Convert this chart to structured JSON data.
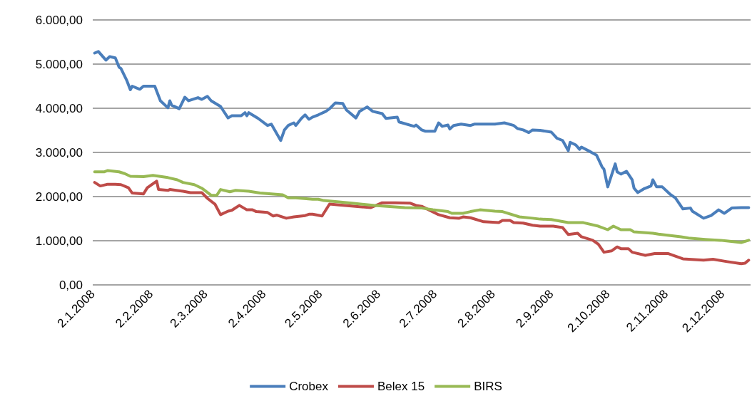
{
  "chart_data": {
    "type": "line",
    "xlim": [
      "2008-01-02",
      "2008-12-17"
    ],
    "xticks": [
      {
        "value": "2008-01-02",
        "label": "2.1.2008"
      },
      {
        "value": "2008-02-02",
        "label": "2.2.2008"
      },
      {
        "value": "2008-03-02",
        "label": "2.3.2008"
      },
      {
        "value": "2008-04-02",
        "label": "2.4.2008"
      },
      {
        "value": "2008-05-02",
        "label": "2.5.2008"
      },
      {
        "value": "2008-06-02",
        "label": "2.6.2008"
      },
      {
        "value": "2008-07-02",
        "label": "2.7.2008"
      },
      {
        "value": "2008-08-02",
        "label": "2.8.2008"
      },
      {
        "value": "2008-09-02",
        "label": "2.9.2008"
      },
      {
        "value": "2008-10-02",
        "label": "2.10.2008"
      },
      {
        "value": "2008-11-02",
        "label": "2.11.2008"
      },
      {
        "value": "2008-12-02",
        "label": "2.12.2008"
      }
    ],
    "ylim": [
      0,
      6000
    ],
    "yticks": [
      {
        "value": 0,
        "label": "0,00"
      },
      {
        "value": 1000,
        "label": "1.000,00"
      },
      {
        "value": 2000,
        "label": "2.000,00"
      },
      {
        "value": 3000,
        "label": "3.000,00"
      },
      {
        "value": 4000,
        "label": "4.000,00"
      },
      {
        "value": 5000,
        "label": "5.000,00"
      },
      {
        "value": 6000,
        "label": "6.000,00"
      }
    ],
    "grid": "y",
    "legend": "bottom",
    "marker": "none",
    "line_style": "solid",
    "series": [
      {
        "name": "Crobex",
        "color": "#4a7ebb",
        "x": [
          "2008-01-03",
          "2008-01-05",
          "2008-01-09",
          "2008-01-11",
          "2008-01-14",
          "2008-01-16",
          "2008-01-17",
          "2008-01-20",
          "2008-01-22",
          "2008-01-23",
          "2008-01-27",
          "2008-01-29",
          "2008-02-04",
          "2008-02-07",
          "2008-02-11",
          "2008-02-12",
          "2008-02-13",
          "2008-02-17",
          "2008-02-20",
          "2008-02-22",
          "2008-02-27",
          "2008-02-29",
          "2008-03-03",
          "2008-03-05",
          "2008-03-10",
          "2008-03-14",
          "2008-03-16",
          "2008-03-21",
          "2008-03-23",
          "2008-03-24",
          "2008-03-25",
          "2008-03-30",
          "2008-04-04",
          "2008-04-06",
          "2008-04-11",
          "2008-04-13",
          "2008-04-15",
          "2008-04-18",
          "2008-04-19",
          "2008-04-22",
          "2008-04-24",
          "2008-04-26",
          "2008-04-28",
          "2008-05-01",
          "2008-05-05",
          "2008-05-07",
          "2008-05-10",
          "2008-05-14",
          "2008-05-16",
          "2008-05-21",
          "2008-05-23",
          "2008-05-27",
          "2008-05-30",
          "2008-06-04",
          "2008-06-06",
          "2008-06-12",
          "2008-06-13",
          "2008-06-21",
          "2008-06-22",
          "2008-06-25",
          "2008-06-27",
          "2008-07-02",
          "2008-07-04",
          "2008-07-06",
          "2008-07-09",
          "2008-07-10",
          "2008-07-12",
          "2008-07-16",
          "2008-07-21",
          "2008-07-23",
          "2008-08-03",
          "2008-08-08",
          "2008-08-13",
          "2008-08-15",
          "2008-08-18",
          "2008-08-21",
          "2008-08-23",
          "2008-08-27",
          "2008-09-02",
          "2008-09-05",
          "2008-09-08",
          "2008-09-11",
          "2008-09-12",
          "2008-09-15",
          "2008-09-17",
          "2008-09-18",
          "2008-09-23",
          "2008-09-26",
          "2008-09-29",
          "2008-09-30",
          "2008-10-02",
          "2008-10-06",
          "2008-10-07",
          "2008-10-09",
          "2008-10-12",
          "2008-10-15",
          "2008-10-16",
          "2008-10-18",
          "2008-10-21",
          "2008-10-25",
          "2008-10-26",
          "2008-10-28",
          "2008-10-31",
          "2008-11-04",
          "2008-11-07",
          "2008-11-11",
          "2008-11-15",
          "2008-11-16",
          "2008-11-22",
          "2008-11-26",
          "2008-11-30",
          "2008-12-03",
          "2008-12-07",
          "2008-12-12",
          "2008-12-16"
        ],
        "values": [
          5250,
          5285,
          5090,
          5170,
          5140,
          4930,
          4900,
          4640,
          4420,
          4500,
          4430,
          4500,
          4500,
          4170,
          4010,
          4170,
          4070,
          3990,
          4250,
          4170,
          4240,
          4200,
          4270,
          4170,
          4040,
          3780,
          3830,
          3830,
          3900,
          3830,
          3900,
          3770,
          3610,
          3640,
          3270,
          3510,
          3610,
          3670,
          3610,
          3770,
          3850,
          3750,
          3800,
          3850,
          3930,
          3990,
          4120,
          4110,
          3960,
          3780,
          3930,
          4030,
          3930,
          3880,
          3770,
          3800,
          3690,
          3590,
          3620,
          3510,
          3480,
          3480,
          3670,
          3590,
          3620,
          3530,
          3610,
          3640,
          3610,
          3640,
          3640,
          3670,
          3610,
          3540,
          3510,
          3450,
          3510,
          3500,
          3460,
          3320,
          3270,
          3040,
          3230,
          3170,
          3070,
          3120,
          3010,
          2940,
          2670,
          2620,
          2220,
          2740,
          2560,
          2510,
          2570,
          2380,
          2190,
          2090,
          2170,
          2240,
          2380,
          2220,
          2220,
          2060,
          1970,
          1720,
          1740,
          1670,
          1510,
          1570,
          1700,
          1620,
          1740,
          1750,
          1750
        ]
      },
      {
        "name": "Belex 15",
        "color": "#be4b48",
        "x": [
          "2008-01-03",
          "2008-01-06",
          "2008-01-10",
          "2008-01-14",
          "2008-01-17",
          "2008-01-21",
          "2008-01-23",
          "2008-01-29",
          "2008-01-31",
          "2008-02-05",
          "2008-02-06",
          "2008-02-11",
          "2008-02-12",
          "2008-02-19",
          "2008-02-23",
          "2008-02-29",
          "2008-03-03",
          "2008-03-07",
          "2008-03-10",
          "2008-03-14",
          "2008-03-16",
          "2008-03-20",
          "2008-03-24",
          "2008-03-27",
          "2008-03-29",
          "2008-04-04",
          "2008-04-07",
          "2008-04-09",
          "2008-04-14",
          "2008-04-18",
          "2008-04-24",
          "2008-04-26",
          "2008-04-28",
          "2008-05-03",
          "2008-05-07",
          "2008-05-12",
          "2008-05-23",
          "2008-05-29",
          "2008-06-04",
          "2008-06-11",
          "2008-06-19",
          "2008-06-22",
          "2008-06-25",
          "2008-07-04",
          "2008-07-10",
          "2008-07-15",
          "2008-07-17",
          "2008-07-21",
          "2008-07-28",
          "2008-08-05",
          "2008-08-07",
          "2008-08-11",
          "2008-08-13",
          "2008-08-18",
          "2008-08-23",
          "2008-08-27",
          "2008-09-03",
          "2008-09-08",
          "2008-09-11",
          "2008-09-16",
          "2008-09-18",
          "2008-09-24",
          "2008-09-27",
          "2008-09-30",
          "2008-10-04",
          "2008-10-07",
          "2008-10-09",
          "2008-10-13",
          "2008-10-15",
          "2008-10-22",
          "2008-10-27",
          "2008-11-03",
          "2008-11-11",
          "2008-11-22",
          "2008-11-27",
          "2008-12-04",
          "2008-12-12",
          "2008-12-14",
          "2008-12-16"
        ],
        "values": [
          2320,
          2240,
          2280,
          2280,
          2270,
          2200,
          2080,
          2060,
          2200,
          2350,
          2160,
          2140,
          2160,
          2120,
          2090,
          2090,
          1960,
          1830,
          1590,
          1670,
          1690,
          1800,
          1700,
          1700,
          1660,
          1640,
          1560,
          1580,
          1510,
          1540,
          1570,
          1600,
          1600,
          1560,
          1830,
          1810,
          1770,
          1750,
          1860,
          1860,
          1850,
          1800,
          1780,
          1590,
          1520,
          1510,
          1540,
          1520,
          1430,
          1410,
          1460,
          1460,
          1410,
          1400,
          1350,
          1330,
          1330,
          1300,
          1140,
          1170,
          1090,
          1010,
          920,
          740,
          770,
          860,
          820,
          820,
          740,
          670,
          710,
          710,
          590,
          560,
          580,
          530,
          480,
          490,
          560
        ]
      },
      {
        "name": "BIRS",
        "color": "#98b954",
        "x": [
          "2008-01-03",
          "2008-01-08",
          "2008-01-10",
          "2008-01-16",
          "2008-01-19",
          "2008-01-22",
          "2008-01-29",
          "2008-02-03",
          "2008-02-11",
          "2008-02-16",
          "2008-02-19",
          "2008-02-25",
          "2008-02-29",
          "2008-03-05",
          "2008-03-08",
          "2008-03-10",
          "2008-03-15",
          "2008-03-18",
          "2008-03-25",
          "2008-03-31",
          "2008-04-12",
          "2008-04-15",
          "2008-04-19",
          "2008-04-28",
          "2008-05-01",
          "2008-05-04",
          "2008-05-19",
          "2008-05-31",
          "2008-06-16",
          "2008-06-25",
          "2008-07-01",
          "2008-07-09",
          "2008-07-11",
          "2008-07-17",
          "2008-07-21",
          "2008-07-26",
          "2008-08-03",
          "2008-08-07",
          "2008-08-16",
          "2008-08-23",
          "2008-08-27",
          "2008-09-02",
          "2008-09-11",
          "2008-09-19",
          "2008-09-27",
          "2008-10-02",
          "2008-10-05",
          "2008-10-09",
          "2008-10-14",
          "2008-10-16",
          "2008-10-26",
          "2008-10-29",
          "2008-11-10",
          "2008-11-14",
          "2008-11-23",
          "2008-12-01",
          "2008-12-12",
          "2008-12-16"
        ],
        "values": [
          2560,
          2560,
          2590,
          2560,
          2520,
          2460,
          2450,
          2480,
          2430,
          2380,
          2320,
          2270,
          2190,
          2030,
          2030,
          2160,
          2110,
          2140,
          2120,
          2080,
          2040,
          1970,
          1970,
          1940,
          1940,
          1910,
          1850,
          1800,
          1750,
          1740,
          1700,
          1660,
          1620,
          1620,
          1660,
          1700,
          1670,
          1660,
          1540,
          1510,
          1490,
          1480,
          1410,
          1410,
          1330,
          1250,
          1330,
          1250,
          1250,
          1200,
          1170,
          1150,
          1090,
          1060,
          1030,
          1010,
          960,
          1010
        ]
      }
    ]
  }
}
